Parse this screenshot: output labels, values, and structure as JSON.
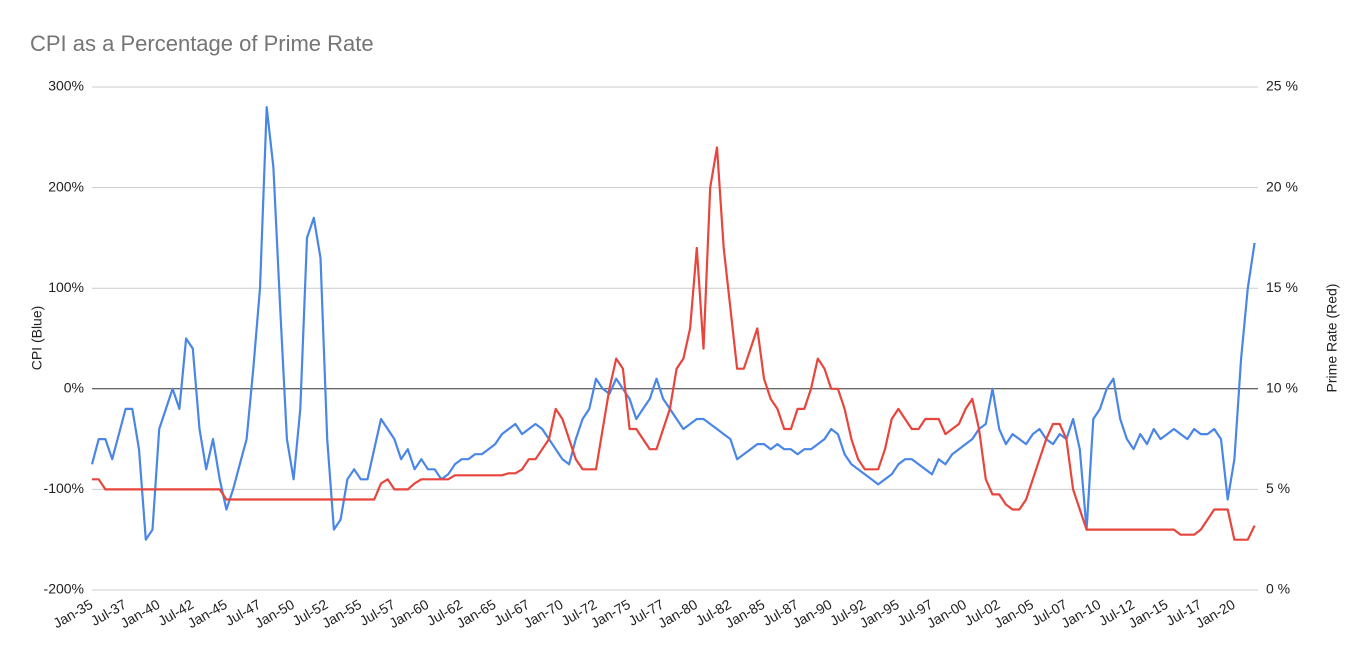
{
  "chart_data": {
    "type": "line",
    "title": "CPI as a Percentage of Prime Rate",
    "y_label": "CPI (Blue)",
    "y2_label": "Prime Rate (Red)",
    "grid": true,
    "categories": [
      "Jan-35",
      null,
      null,
      null,
      null,
      "Jul-37",
      null,
      null,
      null,
      null,
      "Jan-40",
      null,
      null,
      null,
      null,
      "Jul-42",
      null,
      null,
      null,
      null,
      "Jan-45",
      null,
      null,
      null,
      null,
      "Jul-47",
      null,
      null,
      null,
      null,
      "Jan-50",
      null,
      null,
      null,
      null,
      "Jul-52",
      null,
      null,
      null,
      null,
      "Jan-55",
      null,
      null,
      null,
      null,
      "Jul-57",
      null,
      null,
      null,
      null,
      "Jan-60",
      null,
      null,
      null,
      null,
      "Jul-62",
      null,
      null,
      null,
      null,
      "Jan-65",
      null,
      null,
      null,
      null,
      "Jul-67",
      null,
      null,
      null,
      null,
      "Jan-70",
      null,
      null,
      null,
      null,
      "Jul-72",
      null,
      null,
      null,
      null,
      "Jan-75",
      null,
      null,
      null,
      null,
      "Jul-77",
      null,
      null,
      null,
      null,
      "Jan-80",
      null,
      null,
      null,
      null,
      "Jul-82",
      null,
      null,
      null,
      null,
      "Jan-85",
      null,
      null,
      null,
      null,
      "Jul-87",
      null,
      null,
      null,
      null,
      "Jan-90",
      null,
      null,
      null,
      null,
      "Jul-92",
      null,
      null,
      null,
      null,
      "Jan-95",
      null,
      null,
      null,
      null,
      "Jul-97",
      null,
      null,
      null,
      null,
      "Jan-00",
      null,
      null,
      null,
      null,
      "Jul-02",
      null,
      null,
      null,
      null,
      "Jan-05",
      null,
      null,
      null,
      null,
      "Jul-07",
      null,
      null,
      null,
      null,
      "Jan-10",
      null,
      null,
      null,
      null,
      "Jul-12",
      null,
      null,
      null,
      null,
      "Jan-15",
      null,
      null,
      null,
      null,
      "Jul-17",
      null,
      null,
      null,
      null,
      "Jan-20",
      null,
      null,
      null
    ],
    "ylim": [
      -200,
      300
    ],
    "yticks": [
      {
        "value": -200,
        "label": "-200%"
      },
      {
        "value": -100,
        "label": "-100%"
      },
      {
        "value": 0,
        "label": "0%"
      },
      {
        "value": 100,
        "label": "100%"
      },
      {
        "value": 200,
        "label": "200%"
      },
      {
        "value": 300,
        "label": "300%"
      }
    ],
    "y2lim": [
      0,
      25
    ],
    "y2ticks": [
      {
        "value": 0,
        "label": "0 %"
      },
      {
        "value": 5,
        "label": "5 %"
      },
      {
        "value": 10,
        "label": "10 %"
      },
      {
        "value": 15,
        "label": "15 %"
      },
      {
        "value": 20,
        "label": "20 %"
      },
      {
        "value": 25,
        "label": "25 %"
      }
    ],
    "series": [
      {
        "name": "CPI",
        "color": "#4a86e8",
        "axis": "y",
        "values": [
          -75,
          -50,
          -50,
          -70,
          -45,
          -20,
          -20,
          -60,
          -150,
          -140,
          -40,
          -20,
          0,
          -20,
          50,
          40,
          -40,
          -80,
          -50,
          -90,
          -120,
          -100,
          -75,
          -50,
          20,
          100,
          280,
          220,
          80,
          -50,
          -90,
          -20,
          150,
          170,
          130,
          -50,
          -140,
          -130,
          -90,
          -80,
          -90,
          -90,
          -60,
          -30,
          -40,
          -50,
          -70,
          -60,
          -80,
          -70,
          -80,
          -80,
          -90,
          -85,
          -75,
          -70,
          -70,
          -65,
          -65,
          -60,
          -55,
          -45,
          -40,
          -35,
          -45,
          -40,
          -35,
          -40,
          -50,
          -60,
          -70,
          -75,
          -50,
          -30,
          -20,
          10,
          0,
          -5,
          10,
          0,
          -10,
          -30,
          -20,
          -10,
          10,
          -10,
          -20,
          -30,
          -40,
          -35,
          -30,
          -30,
          -35,
          -40,
          -45,
          -50,
          -70,
          -65,
          -60,
          -55,
          -55,
          -60,
          -55,
          -60,
          -60,
          -65,
          -60,
          -60,
          -55,
          -50,
          -40,
          -45,
          -65,
          -75,
          -80,
          -85,
          -90,
          -95,
          -90,
          -85,
          -75,
          -70,
          -70,
          -75,
          -80,
          -85,
          -70,
          -75,
          -65,
          -60,
          -55,
          -50,
          -40,
          -35,
          0,
          -40,
          -55,
          -45,
          -50,
          -55,
          -45,
          -40,
          -50,
          -55,
          -45,
          -50,
          -30,
          -60,
          -140,
          -30,
          -20,
          0,
          10,
          -30,
          -50,
          -60,
          -45,
          -55,
          -40,
          -50,
          -45,
          -40,
          -45,
          -50,
          -40,
          -45,
          -45,
          -40,
          -50,
          -110,
          -70,
          30,
          100,
          145
        ]
      },
      {
        "name": "Prime Rate",
        "color": "#e8453c",
        "axis": "y2",
        "values": [
          5.5,
          5.5,
          5,
          5,
          5,
          5,
          5,
          5,
          5,
          5,
          5,
          5,
          5,
          5,
          5,
          5,
          5,
          5,
          5,
          5,
          4.5,
          4.5,
          4.5,
          4.5,
          4.5,
          4.5,
          4.5,
          4.5,
          4.5,
          4.5,
          4.5,
          4.5,
          4.5,
          4.5,
          4.5,
          4.5,
          4.5,
          4.5,
          4.5,
          4.5,
          4.5,
          4.5,
          4.5,
          5.3,
          5.5,
          5,
          5,
          5,
          5.3,
          5.5,
          5.5,
          5.5,
          5.5,
          5.5,
          5.7,
          5.7,
          5.7,
          5.7,
          5.7,
          5.7,
          5.7,
          5.7,
          5.8,
          5.8,
          6,
          6.5,
          6.5,
          7,
          7.5,
          9,
          8.5,
          7.5,
          6.5,
          6,
          6,
          6,
          8,
          10,
          11.5,
          11,
          8,
          8,
          7.5,
          7,
          7,
          8,
          9,
          11,
          11.5,
          13,
          17,
          12,
          20,
          22,
          17,
          14,
          11,
          11,
          12,
          13,
          10.5,
          9.5,
          9,
          8,
          8,
          9,
          9,
          10,
          11.5,
          11,
          10,
          10,
          9,
          7.5,
          6.5,
          6,
          6,
          6,
          7,
          8.5,
          9,
          8.5,
          8,
          8,
          8.5,
          8.5,
          8.5,
          7.75,
          8,
          8.25,
          9,
          9.5,
          8,
          5.5,
          4.75,
          4.75,
          4.25,
          4,
          4,
          4.5,
          5.5,
          6.5,
          7.5,
          8.25,
          8.25,
          7.5,
          5,
          4,
          3,
          3,
          3,
          3,
          3,
          3,
          3,
          3,
          3,
          3,
          3,
          3,
          3,
          3,
          2.75,
          2.75,
          2.75,
          3,
          3.5,
          4,
          4,
          4,
          2.5,
          2.5,
          2.5,
          3.2
        ]
      }
    ]
  }
}
